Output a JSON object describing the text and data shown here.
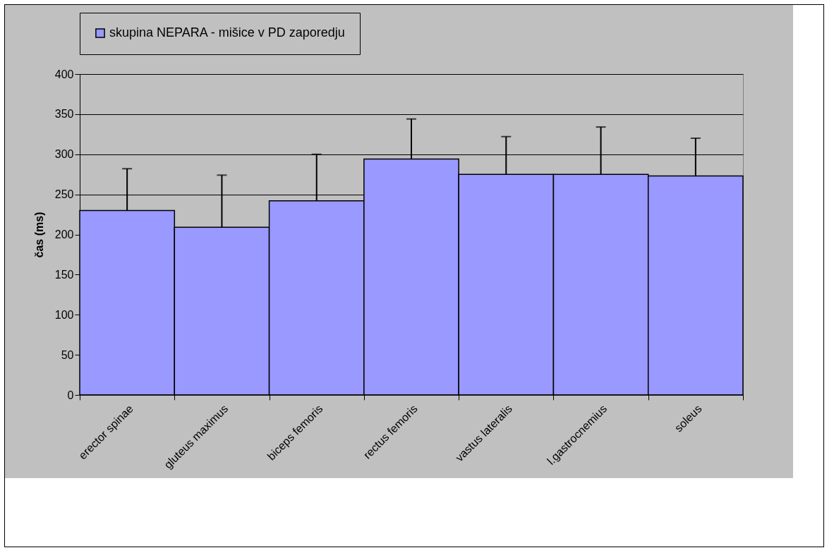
{
  "chart_data": {
    "type": "bar",
    "ylabel": "čas (ms)",
    "categories": [
      "erector spinae",
      "gluteus maximus",
      "biceps femoris",
      "rectus femoris",
      "vastus lateralis",
      "l.gastrocnemius",
      "soleus"
    ],
    "series": [
      {
        "name": "skupina NEPARA - mišice v PD zaporedju",
        "color": "#9999ff",
        "values": [
          230,
          209,
          242,
          294,
          275,
          275,
          273
        ],
        "errors": [
          [
            230,
            282
          ],
          [
            209,
            274
          ],
          [
            242,
            300
          ],
          [
            294,
            344
          ],
          [
            275,
            322
          ],
          [
            275,
            334
          ],
          [
            273,
            320
          ]
        ]
      }
    ],
    "ylim": [
      0,
      400
    ],
    "yticks": [
      0,
      50,
      100,
      150,
      200,
      250,
      300,
      350,
      400
    ],
    "grid": "y",
    "legend": "top"
  }
}
